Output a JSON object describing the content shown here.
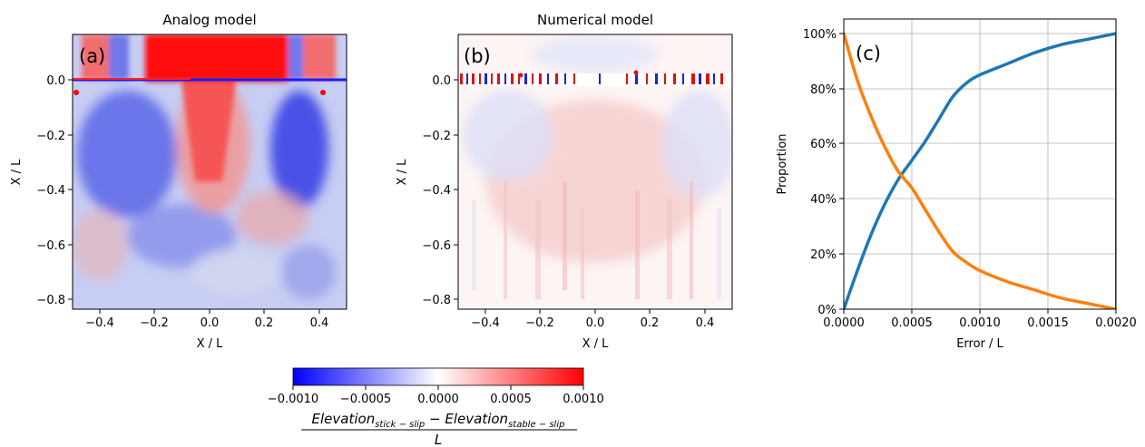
{
  "chart_data": [
    {
      "type": "heatmap",
      "panel_label": "(a)",
      "title": "Analog model",
      "xlabel": "X / L",
      "ylabel": "X / L",
      "xlim": [
        -0.5,
        0.5
      ],
      "ylim": [
        -0.84,
        0.16
      ],
      "xticks": [
        "−0.4",
        "−0.2",
        "0.0",
        "0.2",
        "0.4"
      ],
      "xtick_values": [
        -0.4,
        -0.2,
        0.0,
        0.2,
        0.4
      ],
      "yticks": [
        "0.0",
        "−0.2",
        "−0.4",
        "−0.6",
        "−0.8"
      ],
      "ytick_values": [
        0.0,
        -0.2,
        -0.4,
        -0.6,
        -0.8
      ],
      "colormap": "bwr"
    },
    {
      "type": "heatmap",
      "panel_label": "(b)",
      "title": "Numerical model",
      "xlabel": "X / L",
      "ylabel": "X / L",
      "xlim": [
        -0.5,
        0.5
      ],
      "ylim": [
        -0.84,
        0.16
      ],
      "xticks": [
        "−0.4",
        "−0.2",
        "0.0",
        "0.2",
        "0.4"
      ],
      "xtick_values": [
        -0.4,
        -0.2,
        0.0,
        0.2,
        0.4
      ],
      "yticks": [
        "0.0",
        "−0.2",
        "−0.4",
        "−0.6",
        "−0.8"
      ],
      "ytick_values": [
        0.0,
        -0.2,
        -0.4,
        -0.6,
        -0.8
      ],
      "colormap": "bwr"
    },
    {
      "type": "line",
      "panel_label": "(c)",
      "xlabel": "Error / L",
      "ylabel": "Proportion",
      "xlim": [
        0,
        0.002
      ],
      "ylim": [
        0,
        100
      ],
      "grid": true,
      "xticks": [
        "0.0000",
        "0.0005",
        "0.0010",
        "0.0015",
        "0.0020"
      ],
      "xtick_values": [
        0,
        0.0005,
        0.001,
        0.0015,
        0.002
      ],
      "yticks": [
        "0%",
        "20%",
        "40%",
        "60%",
        "80%",
        "100%"
      ],
      "ytick_values": [
        0,
        20,
        40,
        60,
        80,
        100
      ],
      "series": [
        {
          "color": "#1f77b4",
          "x": [
            0,
            0.0001,
            0.0002,
            0.0003,
            0.0004,
            0.0005,
            0.0006,
            0.0007,
            0.0008,
            0.0009,
            0.001,
            0.0012,
            0.0014,
            0.0016,
            0.0018,
            0.002
          ],
          "y": [
            0,
            14,
            27,
            38,
            47,
            54,
            61,
            69,
            77,
            82,
            85,
            89,
            93,
            96,
            98,
            100
          ]
        },
        {
          "color": "#ff7f0e",
          "x": [
            0,
            0.0001,
            0.0002,
            0.0003,
            0.0004,
            0.0005,
            0.0006,
            0.0007,
            0.0008,
            0.0009,
            0.001,
            0.0012,
            0.0014,
            0.0016,
            0.0018,
            0.002
          ],
          "y": [
            100,
            83,
            70,
            59,
            50,
            44,
            36,
            28,
            21,
            17,
            14,
            10,
            7,
            4,
            2,
            0
          ]
        }
      ]
    }
  ],
  "colorbar": {
    "colormap": "bwr",
    "range": [
      -0.001,
      0.001
    ],
    "ticks": [
      "−0.0010",
      "−0.0005",
      "0.0000",
      "0.0005",
      "0.0010"
    ],
    "tick_values": [
      -0.001,
      -0.0005,
      0,
      0.0005,
      0.001
    ],
    "colors": {
      "min": "#0000ff",
      "mid": "#ffffff",
      "max": "#ff0000"
    },
    "label": {
      "num_a": "Elevation",
      "num_a_sub": "stick − slip",
      "minus": " − ",
      "num_b": "Elevation",
      "num_b_sub": "stable − slip",
      "den": "L"
    }
  }
}
